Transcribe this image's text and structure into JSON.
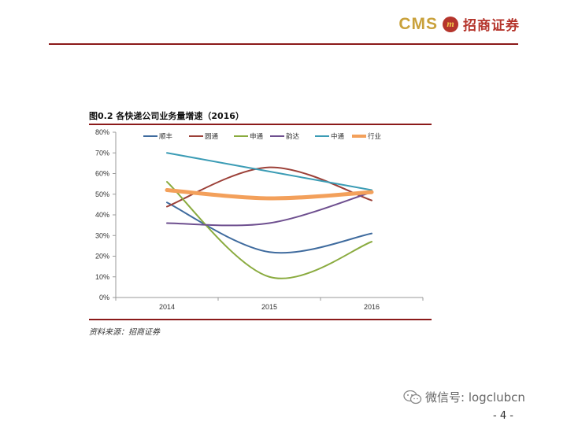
{
  "header": {
    "brand_en": "CMS",
    "brand_logo_glyph": "m",
    "brand_cn": "招商证券"
  },
  "figure": {
    "title": "图0.2 各快递公司业务量增速（2016）",
    "source": "资料来源：招商证券"
  },
  "chart_data": {
    "type": "line",
    "categories": [
      "2014",
      "2015",
      "2016"
    ],
    "y_tick_labels": [
      "0%",
      "10%",
      "20%",
      "30%",
      "40%",
      "50%",
      "60%",
      "70%",
      "80%"
    ],
    "ylim": [
      0,
      80
    ],
    "smooth": true,
    "legend_position": "top",
    "series": [
      {
        "name": "顺丰",
        "values": [
          46,
          22,
          31
        ],
        "color": "#3f6b9e",
        "width": 2
      },
      {
        "name": "圆通",
        "values": [
          44,
          63,
          47
        ],
        "color": "#9c4038",
        "width": 2
      },
      {
        "name": "申通",
        "values": [
          56,
          10,
          27
        ],
        "color": "#8aab3f",
        "width": 2
      },
      {
        "name": "韵达",
        "values": [
          36,
          36,
          51
        ],
        "color": "#6e4f8f",
        "width": 2
      },
      {
        "name": "中通",
        "values": [
          70,
          61,
          52
        ],
        "color": "#3b9cb5",
        "width": 2
      },
      {
        "name": "行业",
        "values": [
          52,
          48,
          51
        ],
        "color": "#f3a05b",
        "width": 5
      }
    ]
  },
  "footer": {
    "wechat": "微信号: logclubcn",
    "page": "- 4 -"
  }
}
